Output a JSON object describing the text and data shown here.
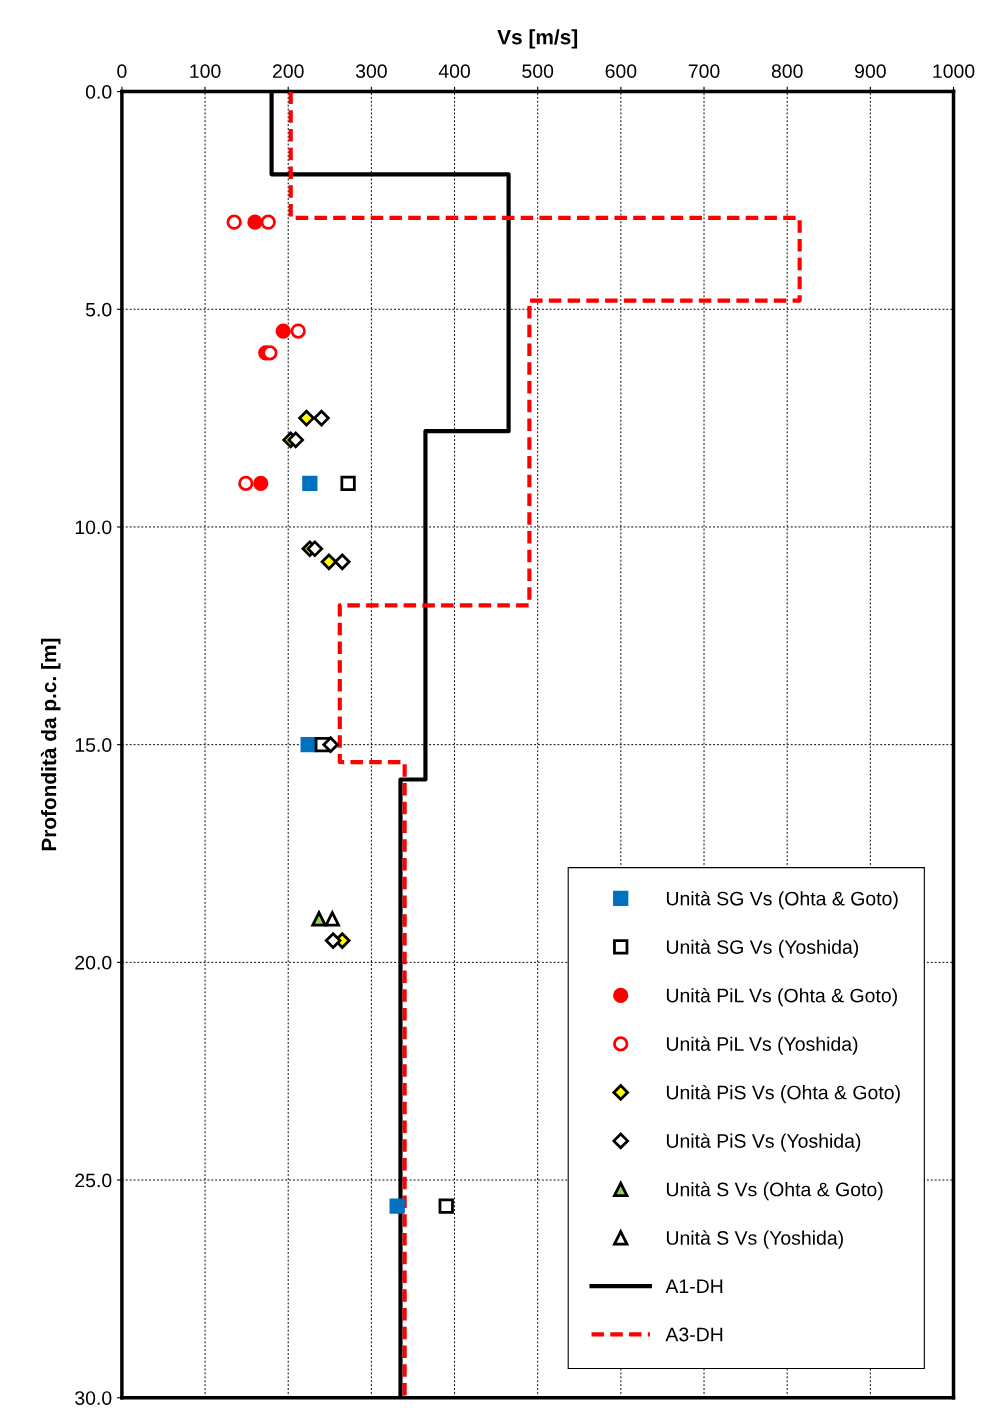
{
  "chart_data": {
    "type": "scatter",
    "xlabel": "Vs [m/s]",
    "ylabel": "Profondità da p.c. [m]",
    "xlim": [
      0,
      1000
    ],
    "xticks": [
      0,
      100,
      200,
      300,
      400,
      500,
      600,
      700,
      800,
      900,
      1000
    ],
    "ylim": [
      30,
      0
    ],
    "yticks": [
      {
        "value": 0,
        "label": "0.0"
      },
      {
        "value": 5,
        "label": "5.0"
      },
      {
        "value": 10,
        "label": "10.0"
      },
      {
        "value": 15,
        "label": "15.0"
      },
      {
        "value": 20,
        "label": "20.0"
      },
      {
        "value": 25,
        "label": "25.0"
      },
      {
        "value": 30,
        "label": "30.0"
      }
    ],
    "grid": true,
    "legend": "bottom right",
    "series": [
      {
        "name": "Unità SG Vs (Ohta & Goto)",
        "marker": "square",
        "color": "#0070c0",
        "x": [
          226,
          224,
          331
        ],
        "values": [
          9.0,
          15.0,
          25.6
        ]
      },
      {
        "name": "Unità SG Vs (Yoshida)",
        "marker": "square",
        "color": "#000000",
        "x": [
          272,
          241,
          390
        ],
        "values": [
          9.0,
          15.0,
          25.6
        ]
      },
      {
        "name": "Unità PiL Vs (Ohta & Goto)",
        "marker": "circle",
        "color": "#ff0000",
        "x": [
          160,
          194,
          173,
          167
        ],
        "values": [
          3.0,
          5.5,
          6.0,
          9.0
        ]
      },
      {
        "name": "Unità PiL Vs (Yoshida)",
        "marker": "circle",
        "color": "#ff0000",
        "x": [
          135,
          176,
          212,
          178,
          149
        ],
        "values": [
          3.0,
          3.0,
          5.5,
          6.0,
          9.0
        ]
      },
      {
        "name": "Unità PiS Vs (Ohta & Goto)",
        "marker": "diamond",
        "color": "#ffff00",
        "x": [
          222,
          203,
          226,
          249,
          265
        ],
        "values": [
          7.5,
          8.0,
          10.5,
          10.8,
          19.5
        ]
      },
      {
        "name": "Unità PiS Vs (Yoshida)",
        "marker": "diamond",
        "color": "#000000",
        "x": [
          240,
          209,
          232,
          265,
          251,
          254
        ],
        "values": [
          7.5,
          8.0,
          10.5,
          10.8,
          15.0,
          19.5
        ]
      },
      {
        "name": "Unità S Vs (Ohta & Goto)",
        "marker": "triangle",
        "color": "#92d050",
        "x": [
          237
        ],
        "values": [
          19.0
        ]
      },
      {
        "name": "Unità S Vs (Yoshida)",
        "marker": "triangle",
        "color": "#000000",
        "x": [
          253
        ],
        "values": [
          19.0
        ]
      },
      {
        "name": "A1-DH",
        "type": "line",
        "line_style": "solid",
        "color": "#000000",
        "x": [
          180,
          180,
          465,
          465,
          365,
          365,
          335,
          335
        ],
        "values": [
          0,
          1.9,
          1.9,
          7.8,
          7.8,
          15.8,
          15.8,
          30
        ]
      },
      {
        "name": "A3-DH",
        "type": "line",
        "line_style": "dashed",
        "color": "#ff0000",
        "x": [
          203,
          203,
          815,
          815,
          490,
          490,
          262,
          262,
          340,
          340
        ],
        "values": [
          0,
          2.9,
          2.9,
          4.8,
          4.8,
          11.8,
          11.8,
          15.4,
          15.4,
          30
        ]
      }
    ]
  }
}
